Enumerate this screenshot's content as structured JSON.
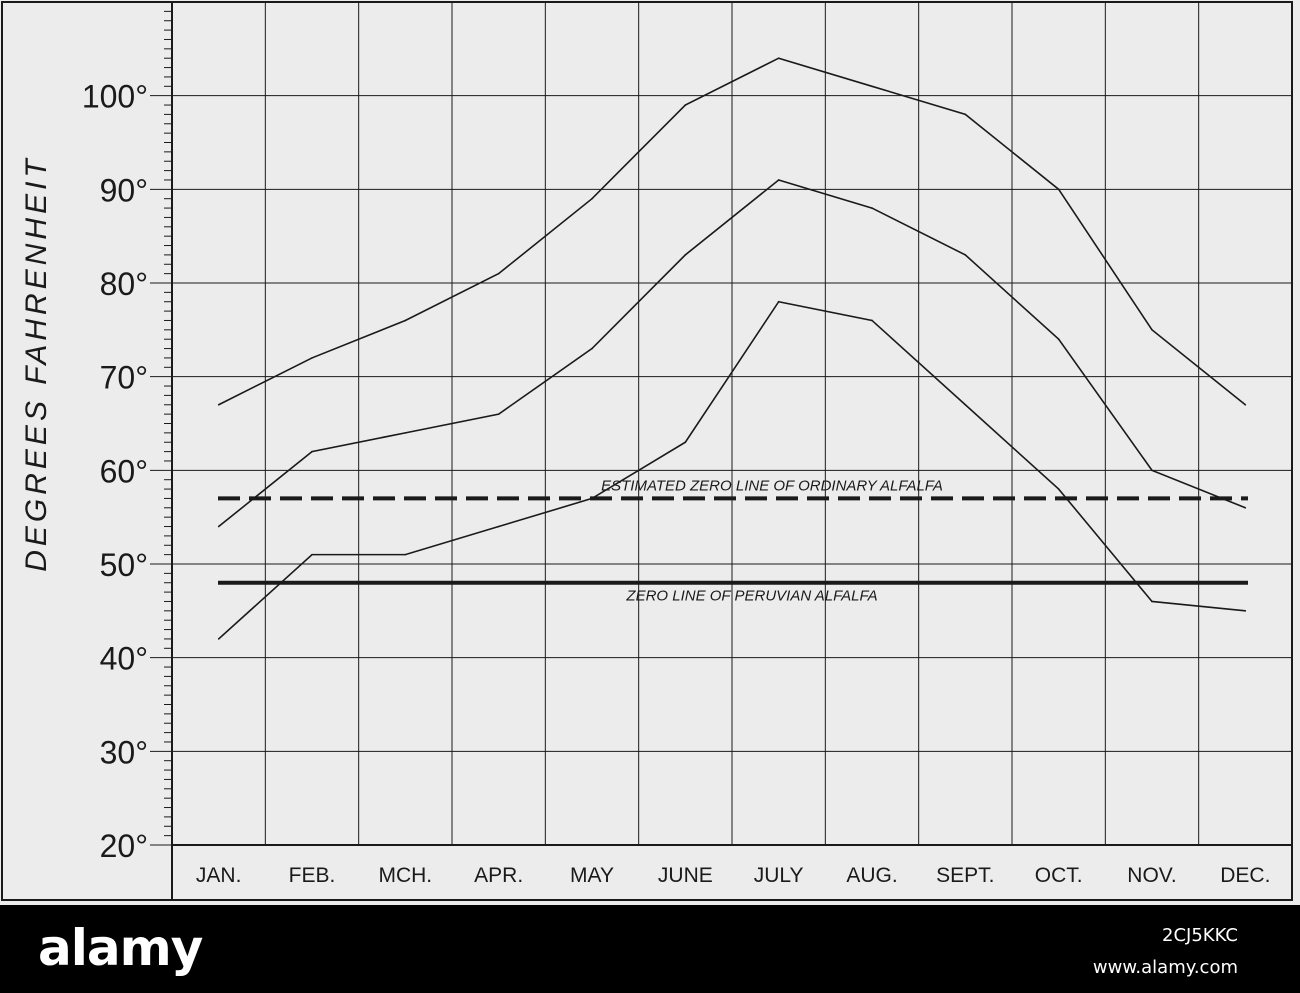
{
  "chart_data": {
    "type": "line",
    "ylabel": "DEGREES FAHRENHEIT",
    "xlabel": "",
    "title": "",
    "categories": [
      "JAN.",
      "FEB.",
      "MCH.",
      "APR.",
      "MAY",
      "JUNE",
      "JULY",
      "AUG.",
      "SEPT.",
      "OCT.",
      "NOV.",
      "DEC."
    ],
    "ylim": [
      20,
      110
    ],
    "yticks": [
      20,
      30,
      40,
      50,
      60,
      70,
      80,
      90,
      100
    ],
    "ytick_labels": [
      "20°",
      "30°",
      "40°",
      "50°",
      "60°",
      "70°",
      "80°",
      "90°",
      "100°"
    ],
    "grid": true,
    "series": [
      {
        "values": [
          67,
          72,
          76,
          81,
          89,
          99,
          104,
          101,
          98,
          90,
          75,
          67
        ]
      },
      {
        "values": [
          54,
          62,
          64,
          66,
          73,
          83,
          91,
          88,
          83,
          74,
          60,
          56
        ]
      },
      {
        "values": [
          42,
          51,
          51,
          54,
          57,
          63,
          78,
          76,
          67,
          58,
          46,
          45
        ]
      }
    ],
    "reference_lines": [
      {
        "y": 57,
        "style": "dashed",
        "label": "ESTIMATED ZERO LINE OF ORDINARY ALFALFA"
      },
      {
        "y": 48,
        "style": "solid",
        "label": "ZERO LINE OF PERUVIAN ALFALFA"
      }
    ],
    "colors": {
      "ink": "#1a1a1a",
      "paper": "#ececec"
    }
  },
  "watermark": {
    "brand": "alamy",
    "image_id": "2CJ5KKC",
    "url": "www.alamy.com"
  }
}
